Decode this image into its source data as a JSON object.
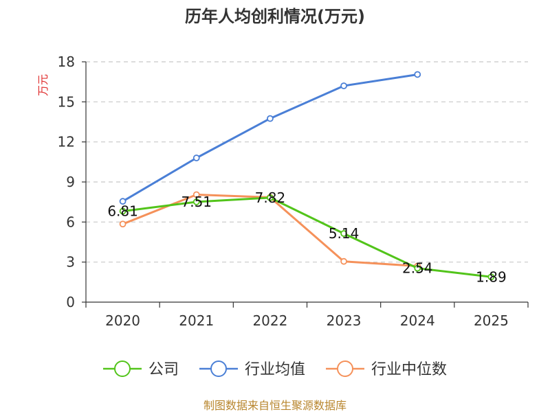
{
  "chart_data": {
    "type": "line",
    "title": "历年人均创利情况(万元)",
    "ylabel": "万元",
    "xlabel": "",
    "categories": [
      "2020",
      "2021",
      "2022",
      "2023",
      "2024",
      "2025"
    ],
    "ylim": [
      0,
      18
    ],
    "yticks": [
      0,
      3,
      6,
      9,
      12,
      15,
      18
    ],
    "grid": true,
    "legend_position": "bottom",
    "series": [
      {
        "name": "公司",
        "color": "#52c41a",
        "values": [
          6.81,
          7.51,
          7.82,
          5.14,
          2.54,
          1.89
        ],
        "labels": [
          "6.81",
          "7.51",
          "7.82",
          "5.14",
          "2.54",
          "1.89"
        ]
      },
      {
        "name": "行业均值",
        "color": "#4a7fd6",
        "values": [
          7.55,
          10.8,
          13.75,
          16.2,
          17.05,
          null
        ]
      },
      {
        "name": "行业中位数",
        "color": "#f5915a",
        "values": [
          5.85,
          8.05,
          7.85,
          3.05,
          2.7,
          null
        ]
      }
    ],
    "source": "制图数据来自恒生聚源数据库",
    "ylabel_color": "#e03030",
    "source_color": "#b8862e"
  }
}
